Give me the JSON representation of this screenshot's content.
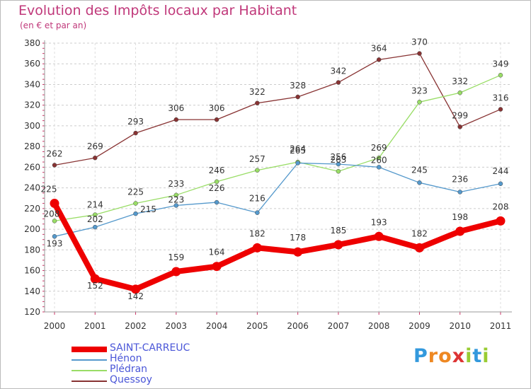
{
  "header": {
    "title": "Evolution des Impôts locaux par Habitant",
    "subtitle": "(en € et par an)"
  },
  "colors": {
    "title": "#c0387a",
    "axis": "#333333",
    "grid": "#cccccc",
    "plot_bg": "#ffffff"
  },
  "chart_data": {
    "type": "line",
    "x": [
      "2000",
      "2001",
      "2002",
      "2003",
      "2004",
      "2005",
      "2006",
      "2007",
      "2008",
      "2009",
      "2010",
      "2011"
    ],
    "ylim": [
      120,
      380
    ],
    "yticks": [
      120,
      140,
      160,
      180,
      200,
      220,
      240,
      260,
      280,
      300,
      320,
      340,
      360,
      380
    ],
    "grid": "horizontal dashed",
    "legend_position": "bottom-left",
    "series": [
      {
        "name": "SAINT-CARREUC",
        "color": "#ee0000",
        "emphasis": true,
        "values": [
          225,
          152,
          142,
          159,
          164,
          182,
          178,
          185,
          193,
          182,
          198,
          208
        ]
      },
      {
        "name": "Hénon",
        "color": "#5599cc",
        "emphasis": false,
        "values": [
          193,
          202,
          215,
          223,
          226,
          216,
          264,
          263,
          260,
          245,
          236,
          244
        ]
      },
      {
        "name": "Plédran",
        "color": "#99dd66",
        "emphasis": false,
        "values": [
          208,
          214,
          225,
          233,
          246,
          257,
          265,
          256,
          269,
          323,
          332,
          349
        ]
      },
      {
        "name": "Quessoy",
        "color": "#883333",
        "emphasis": false,
        "values": [
          262,
          269,
          293,
          306,
          306,
          322,
          328,
          342,
          364,
          370,
          299,
          316
        ]
      }
    ],
    "data_labels": [
      [
        225,
        152,
        142,
        159,
        164,
        182,
        178,
        185,
        193,
        182,
        198,
        208
      ],
      [
        193,
        202,
        215,
        223,
        226,
        216,
        264,
        263,
        260,
        245,
        236,
        244
      ],
      [
        208,
        214,
        225,
        233,
        246,
        257,
        265,
        256,
        269,
        323,
        332,
        349
      ],
      [
        262,
        269,
        293,
        306,
        306,
        322,
        328,
        342,
        364,
        370,
        299,
        316
      ]
    ]
  },
  "logo": {
    "letters": [
      "P",
      "r",
      "o",
      "x",
      "i",
      "t",
      "i"
    ],
    "colors": [
      "#3399dd",
      "#ee8822",
      "#ee8822",
      "#dd3333",
      "#99cc33",
      "#3399dd",
      "#99cc33"
    ]
  }
}
